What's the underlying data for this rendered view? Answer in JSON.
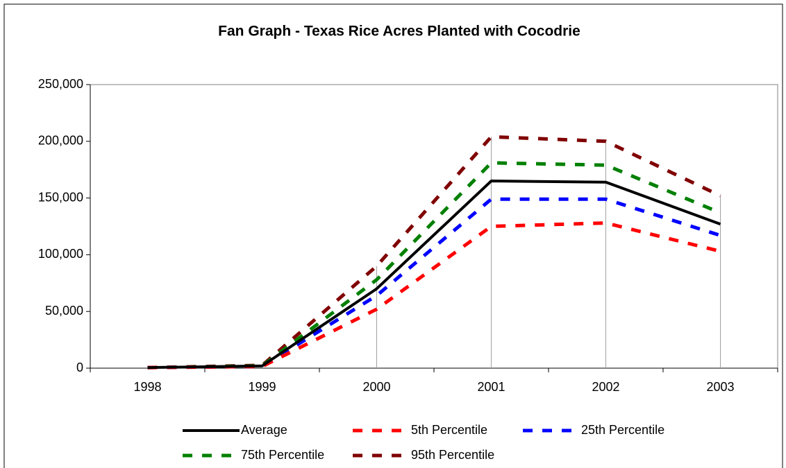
{
  "chart_data": {
    "type": "line",
    "title": "Fan Graph - Texas Rice Acres Planted with Cocodrie",
    "categories": [
      "1998",
      "1999",
      "2000",
      "2001",
      "2002",
      "2003"
    ],
    "series": [
      {
        "name": "Average",
        "color": "#000000",
        "dashed": false,
        "values": [
          500,
          2000,
          70000,
          165000,
          164000,
          127000
        ]
      },
      {
        "name": "5th Percentile",
        "color": "#ff0000",
        "dashed": true,
        "values": [
          500,
          1500,
          52000,
          125000,
          128000,
          103000
        ]
      },
      {
        "name": "25th Percentile",
        "color": "#0000ff",
        "dashed": true,
        "values": [
          500,
          1500,
          64000,
          149000,
          149000,
          117000
        ]
      },
      {
        "name": "75th Percentile",
        "color": "#008000",
        "dashed": true,
        "values": [
          500,
          2000,
          78000,
          181000,
          179000,
          137000
        ]
      },
      {
        "name": "95th Percentile",
        "color": "#800000",
        "dashed": true,
        "values": [
          500,
          2500,
          90000,
          204000,
          200000,
          152000
        ]
      }
    ],
    "ylim": [
      0,
      250000
    ],
    "yticks": [
      0,
      {
        "value": 50000,
        "label": "50,000"
      },
      {
        "value": 100000,
        "label": "100,000"
      },
      {
        "value": 150000,
        "label": "150,000"
      },
      {
        "value": 200000,
        "label": "200,000"
      },
      {
        "value": 250000,
        "label": "250,000"
      }
    ],
    "legend": "bottom",
    "drop_lines": true
  }
}
